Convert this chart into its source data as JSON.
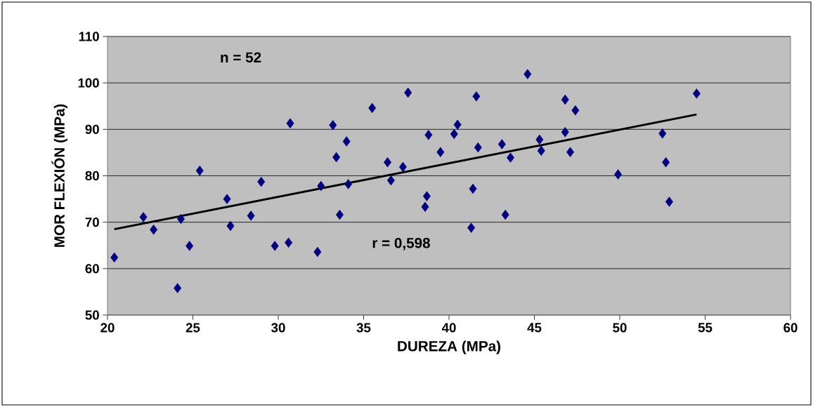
{
  "chart_data": {
    "type": "scatter",
    "xlabel": "DUREZA (MPa)",
    "ylabel": "MOR  FLEXIÓN (MPa)",
    "xlim": [
      20,
      60
    ],
    "xticks": [
      20,
      25,
      30,
      35,
      40,
      45,
      50,
      55,
      60
    ],
    "ylim": [
      50,
      110
    ],
    "yticks": [
      50,
      60,
      70,
      80,
      90,
      100,
      110
    ],
    "grid": "y",
    "marker": "diamond",
    "annotations": [
      "n = 52",
      "r = 0,598"
    ],
    "series": [
      {
        "color": "#000080",
        "x": [
          20.4,
          22.1,
          22.7,
          24.1,
          24.3,
          24.8,
          25.4,
          27.0,
          27.2,
          28.4,
          29.0,
          29.8,
          30.6,
          30.7,
          32.3,
          32.5,
          33.2,
          33.4,
          33.6,
          34.0,
          34.1,
          35.5,
          36.4,
          36.6,
          37.3,
          37.6,
          38.6,
          38.7,
          38.8,
          39.5,
          40.3,
          40.5,
          41.3,
          41.4,
          41.6,
          41.7,
          43.1,
          43.3,
          43.6,
          44.6,
          45.3,
          45.4,
          46.8,
          46.8,
          47.1,
          47.4,
          49.9,
          52.5,
          52.7,
          52.9,
          54.5
        ],
        "values": [
          62.4,
          71.1,
          68.4,
          55.8,
          70.7,
          64.9,
          81.1,
          75.0,
          69.2,
          71.4,
          78.7,
          64.9,
          65.6,
          91.3,
          63.6,
          77.8,
          90.9,
          84.0,
          71.6,
          87.4,
          78.2,
          94.6,
          82.9,
          79.0,
          81.9,
          97.9,
          73.3,
          75.6,
          88.8,
          85.1,
          89.0,
          91.0,
          68.8,
          77.2,
          97.1,
          86.1,
          86.8,
          71.6,
          83.9,
          101.9,
          87.8,
          85.4,
          96.4,
          89.4,
          85.1,
          94.1,
          80.3,
          89.1,
          82.9,
          74.4,
          97.7
        ]
      },
      {
        "type": "line",
        "color": "#000000",
        "marker": "none",
        "x": [
          20.4,
          54.5
        ],
        "values": [
          68.5,
          93.2
        ]
      }
    ]
  }
}
